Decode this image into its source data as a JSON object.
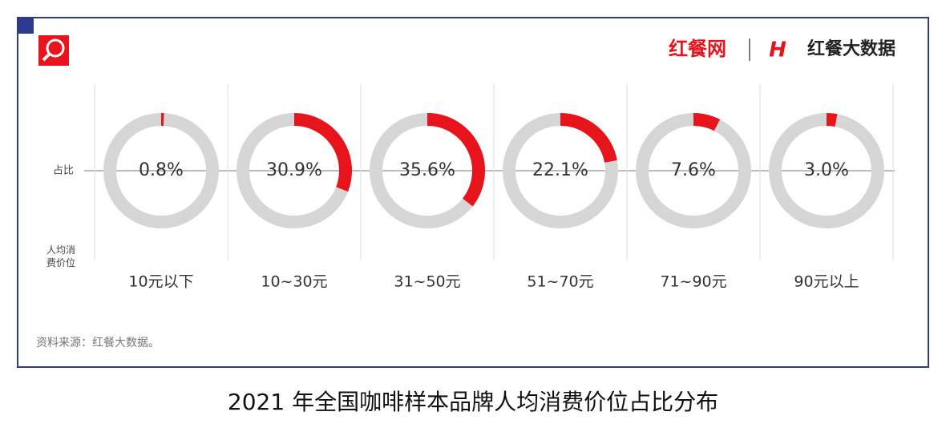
{
  "header": {
    "brand": "红餐网",
    "brand2": "红餐大数据"
  },
  "chart_data": {
    "type": "donut",
    "title": "2021 年全国咖啡样本品牌人均消费价位占比分布",
    "row_label_share": "占比",
    "row_label_price": "人均消费价位",
    "categories": [
      "10元以下",
      "10~30元",
      "31~50元",
      "51~70元",
      "71~90元",
      "90元以上"
    ],
    "values": [
      0.8,
      30.9,
      35.6,
      22.1,
      7.6,
      3.0
    ],
    "value_labels": [
      "0.8%",
      "30.9%",
      "35.6%",
      "22.1%",
      "7.6%",
      "3.0%"
    ],
    "color": "#e8141c",
    "track_color": "#d6d6d6",
    "source": "资料来源：红餐大数据。"
  }
}
